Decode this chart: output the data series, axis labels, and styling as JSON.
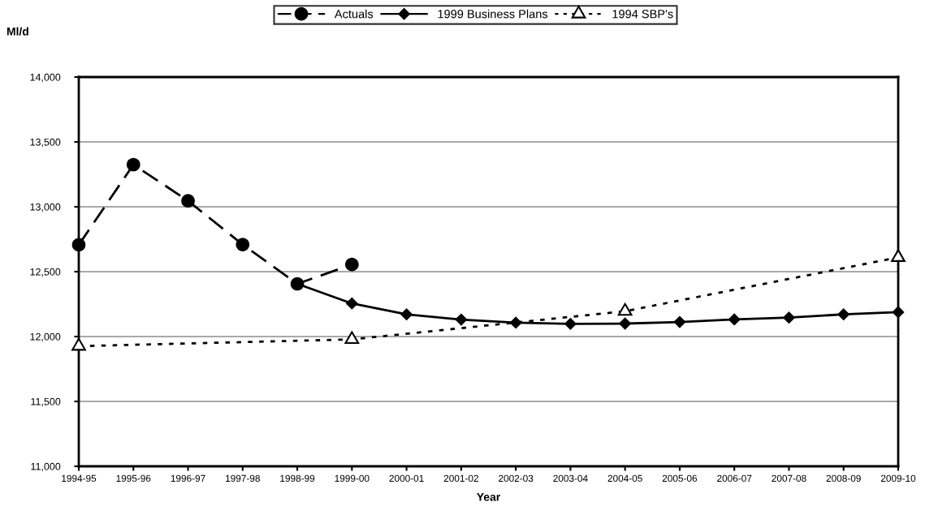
{
  "chart_data": {
    "type": "line",
    "xlabel": "Year",
    "ylabel": "Ml/d",
    "categories": [
      "1994-95",
      "1995-96",
      "1996-97",
      "1997-98",
      "1998-99",
      "1999-00",
      "2000-01",
      "2001-02",
      "2002-03",
      "2003-04",
      "2004-05",
      "2005-06",
      "2006-07",
      "2007-08",
      "2008-09",
      "2009-10"
    ],
    "series": [
      {
        "name": "Actuals",
        "color": "#000000",
        "marker": "circle",
        "line_style": "dashed",
        "values": [
          12707,
          13325,
          13046,
          12709,
          12406,
          12555,
          null,
          null,
          null,
          null,
          null,
          null,
          null,
          null,
          null,
          null
        ]
      },
      {
        "name": "1999 Business Plans",
        "color": "#000000",
        "marker": "diamond",
        "line_style": "solid",
        "values": [
          null,
          null,
          null,
          null,
          12406,
          12255,
          12171,
          12131,
          12107,
          12098,
          12100,
          12112,
          12132,
          12146,
          12171,
          12188
        ]
      },
      {
        "name": "1994 SBP's",
        "color": "#000000",
        "marker": "triangle",
        "line_style": "dotted",
        "values": [
          11926,
          null,
          null,
          null,
          null,
          11978,
          null,
          null,
          null,
          null,
          12195,
          null,
          null,
          null,
          null,
          12610
        ]
      }
    ],
    "ylim": [
      11000,
      14000
    ],
    "yticks": [
      {
        "value": 11000,
        "label": "11,000"
      },
      {
        "value": 11500,
        "label": "11,500"
      },
      {
        "value": 12000,
        "label": "12,000"
      },
      {
        "value": 12500,
        "label": "12,500"
      },
      {
        "value": 13000,
        "label": "13,000"
      },
      {
        "value": 13500,
        "label": "13,500"
      },
      {
        "value": 14000,
        "label": "14,000"
      }
    ],
    "grid": "y",
    "legend": "top"
  }
}
